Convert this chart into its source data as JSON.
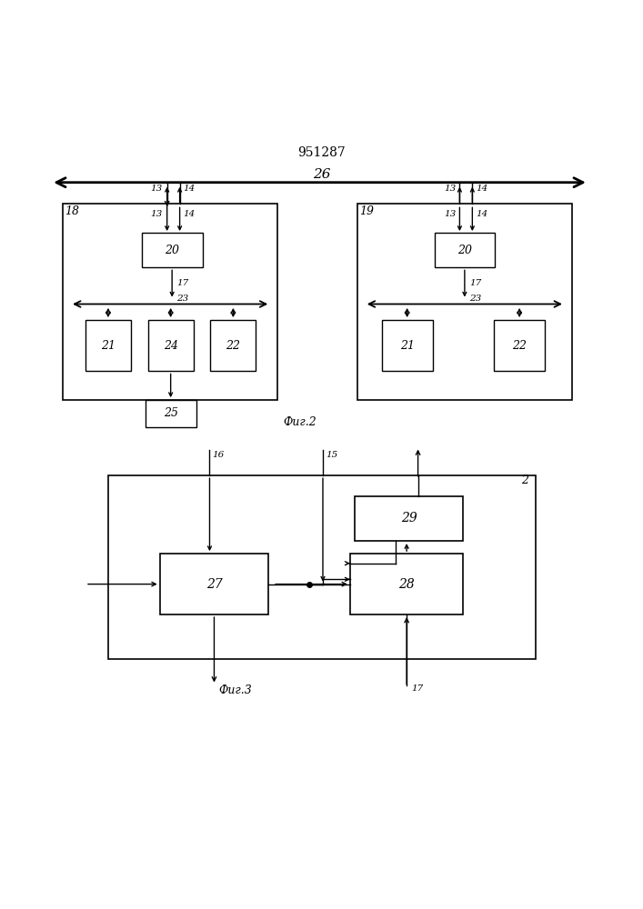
{
  "title": "951287",
  "fig2_label": "Фиг.2",
  "fig3_label": "Фиг.3",
  "bg_color": "#ffffff",
  "line_color": "#000000",
  "text_color": "#000000"
}
